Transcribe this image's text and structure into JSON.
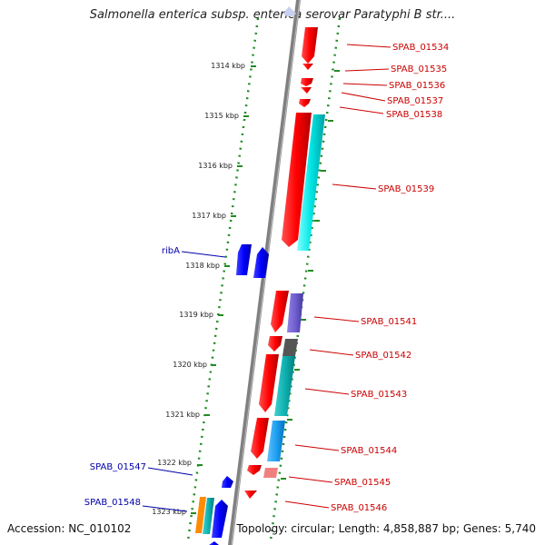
{
  "title": "Salmonella enterica subsp. enterica serovar Paratyphi B str....",
  "footer": {
    "accession": "Accession: NC_010102",
    "summary": "Topology: circular; Length: 4,858,887 bp; Genes: 5,740"
  },
  "ticks": [
    "1314 kbp",
    "1315 kbp",
    "1316 kbp",
    "1317 kbp",
    "1318 kbp",
    "1319 kbp",
    "1320 kbp",
    "1321 kbp",
    "1322 kbp",
    "1323 kbp"
  ],
  "gene_labels_right": [
    "SPAB_01534",
    "SPAB_01535",
    "SPAB_01536",
    "SPAB_01537",
    "SPAB_01538",
    "SPAB_01539",
    "SPAB_01541",
    "SPAB_01542",
    "SPAB_01543",
    "SPAB_01544",
    "SPAB_01545",
    "SPAB_01546"
  ],
  "gene_labels_left": [
    "ribA",
    "SPAB_01547",
    "SPAB_01548"
  ],
  "colors": {
    "label_right": "#cc0000",
    "label_left": "#0000aa",
    "tick": "#228b22",
    "backbone": "#808080"
  }
}
